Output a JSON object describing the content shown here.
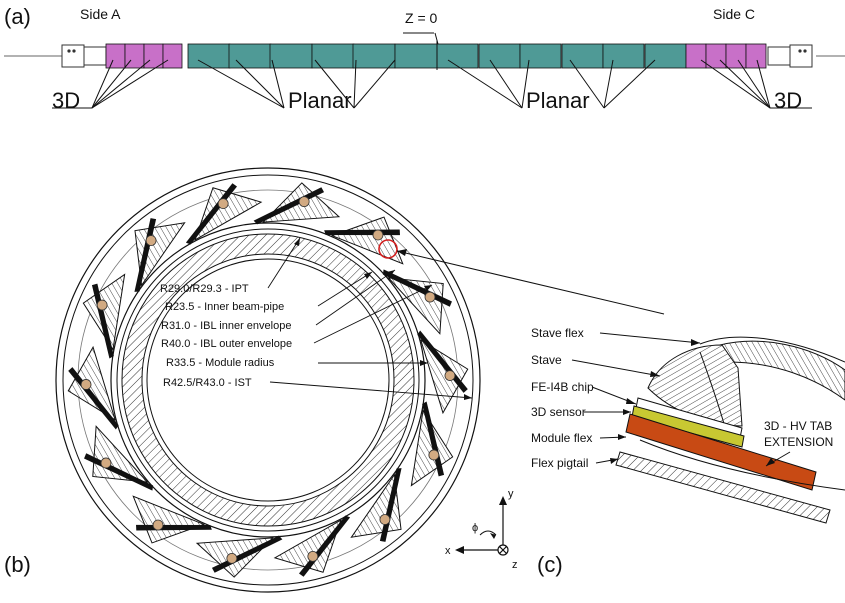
{
  "panels": {
    "a": "(a)",
    "b": "(b)",
    "c": "(c)"
  },
  "top_view": {
    "side_a": "Side A",
    "side_c": "Side C",
    "z0": "Z = 0",
    "label_3d_left": "3D",
    "label_planar_left": "Planar",
    "label_planar_right": "Planar",
    "label_3d_right": "3D",
    "colors": {
      "three_d": "#c870c8",
      "planar": "#4f9a96"
    }
  },
  "radii_labels": [
    "R29.0/R29.3 - IPT",
    "R23.5 - Inner beam-pipe",
    "R31.0 - IBL inner envelope",
    "R40.0 - IBL outer envelope",
    "R33.5 - Module radius",
    "R42.5/R43.0 - IST"
  ],
  "detail_labels": [
    "Stave flex",
    "Stave",
    "FE-I4B chip",
    "3D sensor",
    "Module flex",
    "Flex pigtail"
  ],
  "hv_tab": {
    "line1": "3D - HV TAB",
    "line2": "EXTENSION"
  },
  "axes": {
    "x": "x",
    "y": "y",
    "z": "z",
    "phi": "ϕ"
  },
  "colors": {
    "chip": "#c8c832",
    "flex": "#c84a14",
    "pipe_marker": "#d94030",
    "pipe_fill": "#d2aa82"
  }
}
